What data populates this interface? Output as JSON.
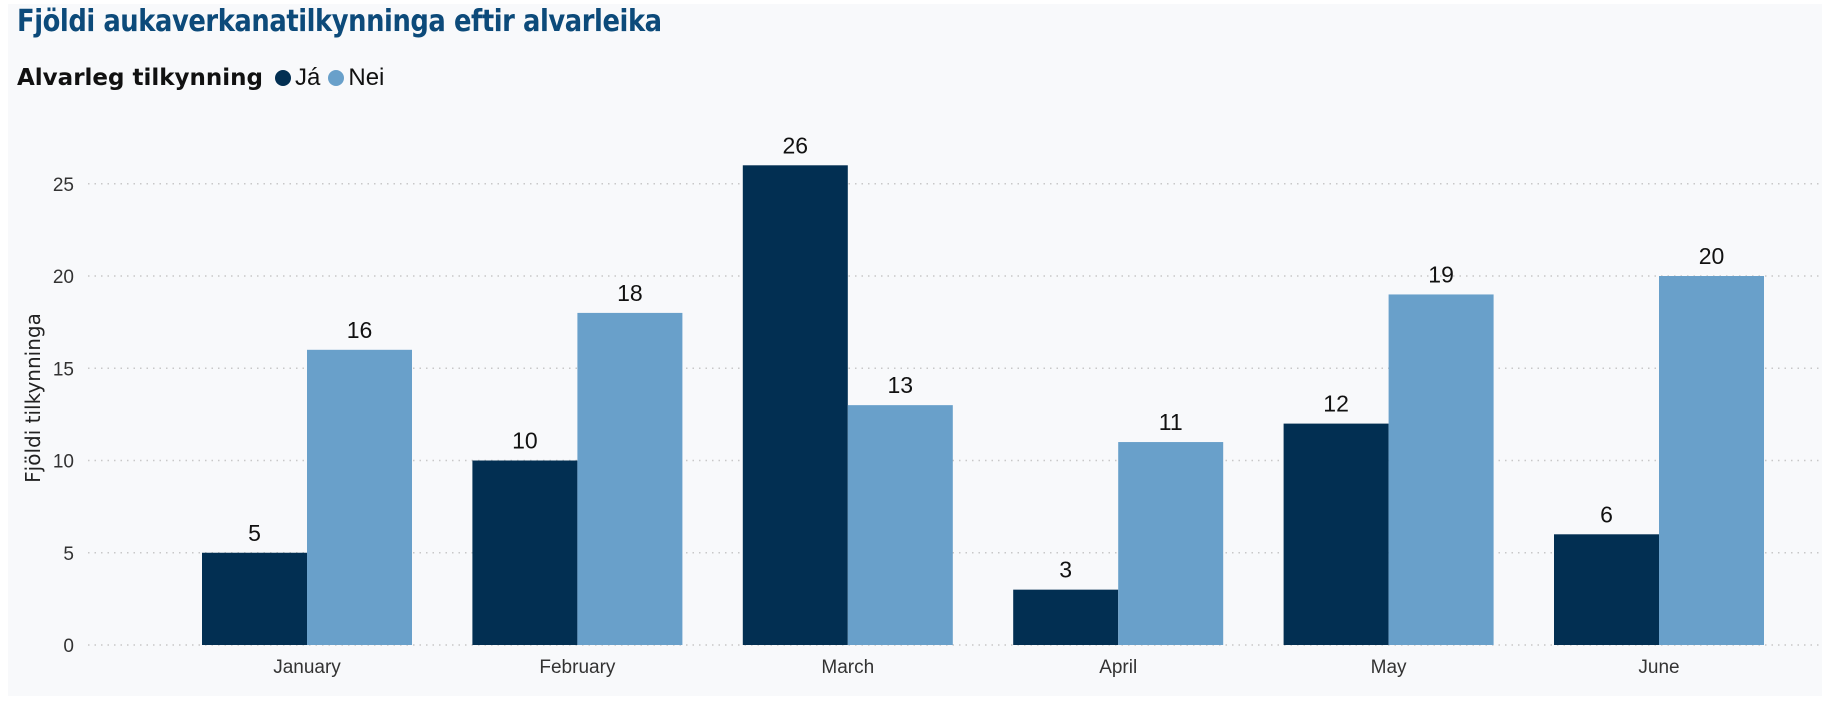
{
  "colors": {
    "ja": "#022f52",
    "nei": "#69a0ca",
    "title": "#0c4a7a",
    "grid": "#c8c8c8"
  },
  "chart_data": {
    "type": "bar",
    "title": "Fjöldi aukaverkanatilkynninga eftir alvarleika",
    "legend_title": "Alvarleg tilkynning",
    "legend_position": "top-left",
    "xlabel": "",
    "ylabel": "Fjöldi tilkynninga",
    "ylim": [
      0,
      28
    ],
    "yticks": [
      0,
      5,
      10,
      15,
      20,
      25
    ],
    "grid": true,
    "categories": [
      "January",
      "February",
      "March",
      "April",
      "May",
      "June"
    ],
    "series": [
      {
        "name": "Já",
        "color": "#022f52",
        "values": [
          5,
          10,
          26,
          3,
          12,
          6
        ]
      },
      {
        "name": "Nei",
        "color": "#69a0ca",
        "values": [
          16,
          18,
          13,
          11,
          19,
          20
        ]
      }
    ]
  }
}
